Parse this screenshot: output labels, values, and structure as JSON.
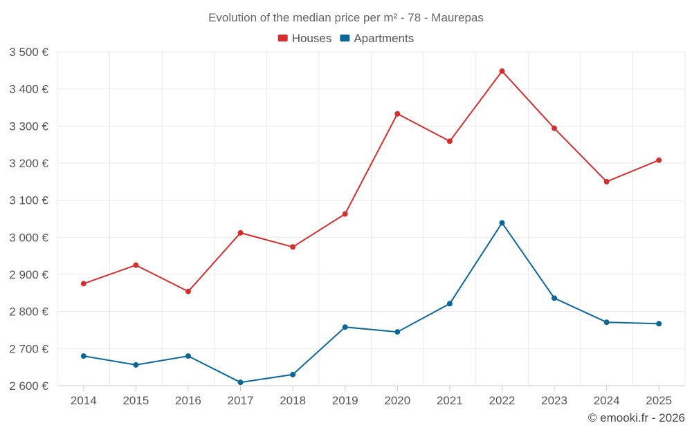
{
  "chart_data": {
    "type": "line",
    "title": "Evolution of the median price per m² - 78 - Maurepas",
    "categories": [
      "2014",
      "2015",
      "2016",
      "2017",
      "2018",
      "2019",
      "2020",
      "2021",
      "2022",
      "2023",
      "2024",
      "2025"
    ],
    "series": [
      {
        "name": "Houses",
        "color": "#d32f2f",
        "values": [
          2875,
          2925,
          2854,
          3012,
          2974,
          3063,
          3333,
          3259,
          3448,
          3294,
          3150,
          3208
        ]
      },
      {
        "name": "Apartments",
        "color": "#0d6698",
        "values": [
          2680,
          2656,
          2680,
          2609,
          2630,
          2758,
          2745,
          2821,
          3039,
          2836,
          2771,
          2767
        ]
      }
    ],
    "ylim": [
      2600,
      3500
    ],
    "yticks": [
      2600,
      2700,
      2800,
      2900,
      3000,
      3100,
      3200,
      3300,
      3400,
      3500
    ],
    "ytick_labels": [
      "2 600 €",
      "2 700 €",
      "2 800 €",
      "2 900 €",
      "3 000 €",
      "3 100 €",
      "3 200 €",
      "3 300 €",
      "3 400 €",
      "3 500 €"
    ],
    "xlabel": "",
    "ylabel": "",
    "grid": true,
    "legend": "top-center"
  },
  "credit": "© emooki.fr - 2026"
}
